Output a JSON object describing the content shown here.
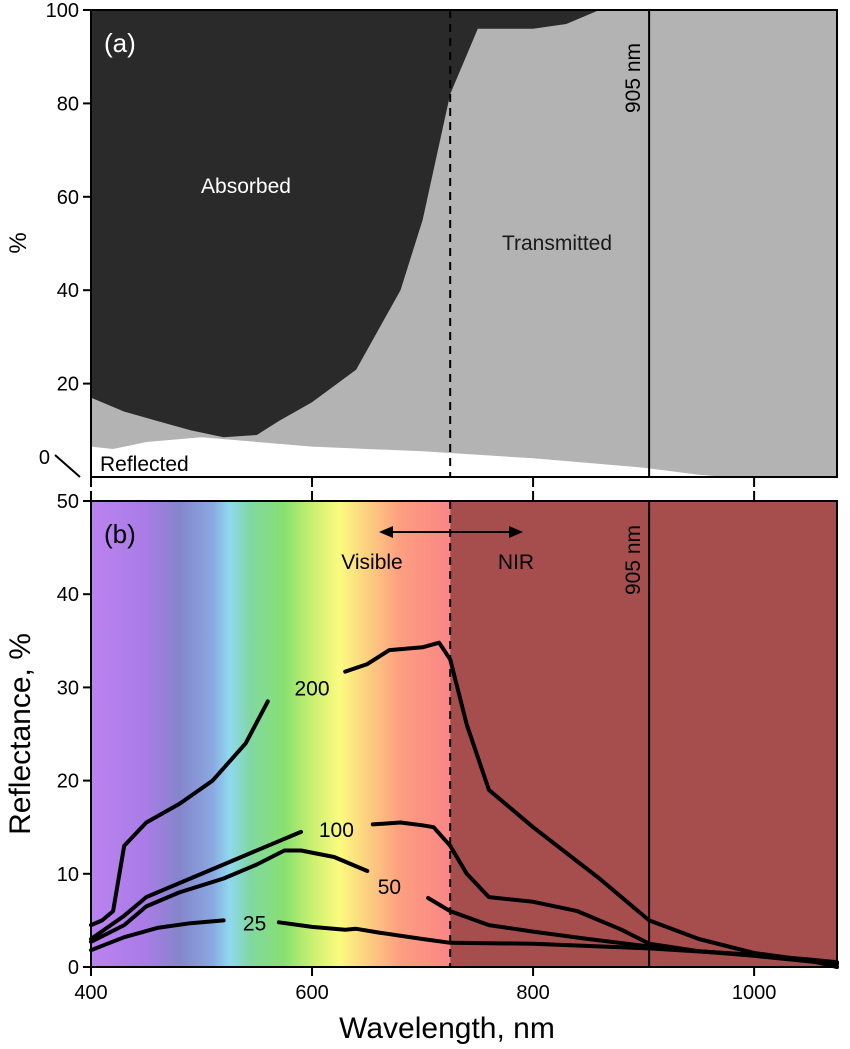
{
  "chart_data": [
    {
      "panel": "(a)",
      "type": "area",
      "ylabel": "%",
      "xlim": [
        400,
        1075
      ],
      "ylim": [
        0,
        100
      ],
      "y_ticks": [
        "0",
        "20",
        "40",
        "60",
        "80",
        "100"
      ],
      "x_ticks": [
        400,
        600,
        800,
        1000
      ],
      "annotations": {
        "absorbed": "Absorbed",
        "transmitted": "Transmitted",
        "reflected": "Reflected",
        "wavelength_marker": "905 nm"
      },
      "markers": {
        "visible_nir_boundary": 725,
        "laser_line": 905,
        "right_line": 1075
      },
      "reflected_upper": [
        [
          400,
          6.5
        ],
        [
          420,
          6
        ],
        [
          450,
          7.5
        ],
        [
          500,
          8.5
        ],
        [
          600,
          6.5
        ],
        [
          700,
          5.5
        ],
        [
          800,
          4
        ],
        [
          900,
          2
        ],
        [
          950,
          0.5
        ],
        [
          975,
          0
        ],
        [
          1075,
          0
        ]
      ],
      "transmitted_upper": [
        [
          400,
          17
        ],
        [
          430,
          14
        ],
        [
          460,
          12
        ],
        [
          490,
          10
        ],
        [
          520,
          8.5
        ],
        [
          550,
          9
        ],
        [
          570,
          12
        ],
        [
          600,
          16
        ],
        [
          640,
          23
        ],
        [
          680,
          40
        ],
        [
          700,
          55
        ],
        [
          725,
          82
        ],
        [
          750,
          96
        ],
        [
          780,
          96
        ],
        [
          800,
          96
        ],
        [
          830,
          97
        ],
        [
          860,
          100
        ],
        [
          1075,
          100
        ]
      ],
      "colors": {
        "absorbed": "#2a2a2a",
        "transmitted": "#b3b3b3",
        "reflected": "#ffffff"
      }
    },
    {
      "panel": "(b)",
      "type": "line",
      "xlabel": "Wavelength, nm",
      "ylabel": "Reflectance, %",
      "xlim": [
        400,
        1075
      ],
      "ylim": [
        0,
        50
      ],
      "x_ticks": [
        "400",
        "600",
        "800",
        "1000"
      ],
      "y_ticks": [
        "0",
        "10",
        "20",
        "30",
        "40",
        "50"
      ],
      "annotations": {
        "visible": "Visible",
        "nir": "NIR",
        "wavelength_marker": "905 nm"
      },
      "markers": {
        "visible_nir_boundary": 725,
        "laser_line": 905,
        "right_line": 1075
      },
      "series": [
        {
          "name": "200",
          "segments": [
            [
              [
                400,
                4.5
              ],
              [
                410,
                5
              ],
              [
                420,
                6
              ],
              [
                430,
                13
              ],
              [
                450,
                15.5
              ],
              [
                480,
                17.5
              ],
              [
                510,
                20
              ],
              [
                540,
                24
              ],
              [
                560,
                28.5
              ]
            ],
            [
              [
                630,
                31.7
              ],
              [
                650,
                32.5
              ],
              [
                670,
                34
              ],
              [
                700,
                34.3
              ],
              [
                715,
                34.8
              ],
              [
                725,
                33
              ],
              [
                740,
                26
              ],
              [
                760,
                19
              ],
              [
                800,
                15
              ],
              [
                860,
                9.5
              ],
              [
                905,
                5
              ],
              [
                950,
                3
              ],
              [
                1000,
                1.5
              ],
              [
                1050,
                0.7
              ],
              [
                1075,
                0
              ]
            ]
          ]
        },
        {
          "name": "100",
          "segments": [
            [
              [
                400,
                3
              ],
              [
                430,
                5.5
              ],
              [
                450,
                7.5
              ],
              [
                480,
                9
              ],
              [
                520,
                11
              ],
              [
                560,
                13
              ],
              [
                590,
                14.5
              ]
            ],
            [
              [
                655,
                15.3
              ],
              [
                680,
                15.5
              ],
              [
                700,
                15.2
              ],
              [
                710,
                15
              ],
              [
                725,
                13
              ],
              [
                740,
                10
              ],
              [
                760,
                7.5
              ],
              [
                800,
                7
              ],
              [
                840,
                6
              ],
              [
                880,
                4
              ],
              [
                905,
                2.5
              ],
              [
                950,
                1.7
              ],
              [
                1000,
                1.2
              ],
              [
                1050,
                0.6
              ],
              [
                1075,
                0.3
              ]
            ]
          ]
        },
        {
          "name": "50",
          "segments": [
            [
              [
                400,
                2.7
              ],
              [
                430,
                4.5
              ],
              [
                450,
                6.5
              ],
              [
                480,
                8
              ],
              [
                520,
                9.5
              ],
              [
                550,
                11
              ],
              [
                575,
                12.5
              ],
              [
                590,
                12.5
              ],
              [
                620,
                11.8
              ],
              [
                650,
                10.3
              ]
            ],
            [
              [
                705,
                7.4
              ],
              [
                725,
                6
              ],
              [
                760,
                4.5
              ],
              [
                800,
                3.8
              ],
              [
                850,
                3
              ],
              [
                905,
                2.2
              ],
              [
                950,
                1.7
              ],
              [
                1000,
                1.3
              ],
              [
                1050,
                0.8
              ],
              [
                1075,
                0.5
              ]
            ]
          ]
        },
        {
          "name": "25",
          "segments": [
            [
              [
                400,
                1.8
              ],
              [
                430,
                3.2
              ],
              [
                460,
                4.2
              ],
              [
                490,
                4.7
              ],
              [
                520,
                5
              ]
            ],
            [
              [
                570,
                4.8
              ],
              [
                600,
                4.3
              ],
              [
                630,
                4
              ],
              [
                640,
                4.1
              ],
              [
                660,
                3.7
              ],
              [
                700,
                3
              ],
              [
                725,
                2.6
              ],
              [
                800,
                2.5
              ],
              [
                905,
                2
              ],
              [
                1000,
                1.3
              ],
              [
                1050,
                0.7
              ]
            ]
          ]
        }
      ],
      "series_label_positions": [
        {
          "name": "200",
          "x": 600,
          "y": 30
        },
        {
          "name": "100",
          "x": 622,
          "y": 14.8
        },
        {
          "name": "50",
          "x": 670,
          "y": 8.7
        },
        {
          "name": "25",
          "x": 548,
          "y": 4.8
        }
      ],
      "background": {
        "spectrum_stops": [
          [
            400,
            "#bb82f0"
          ],
          [
            450,
            "#a97ce6"
          ],
          [
            480,
            "#8585cc"
          ],
          [
            510,
            "#8aa8e0"
          ],
          [
            525,
            "#8fd8f0"
          ],
          [
            545,
            "#80d8a0"
          ],
          [
            575,
            "#88e070"
          ],
          [
            600,
            "#c8f070"
          ],
          [
            625,
            "#fbfb80"
          ],
          [
            650,
            "#fbd080"
          ],
          [
            680,
            "#fc9e80"
          ],
          [
            725,
            "#fa8585"
          ]
        ],
        "nir_color": "#a64e4e"
      }
    }
  ]
}
